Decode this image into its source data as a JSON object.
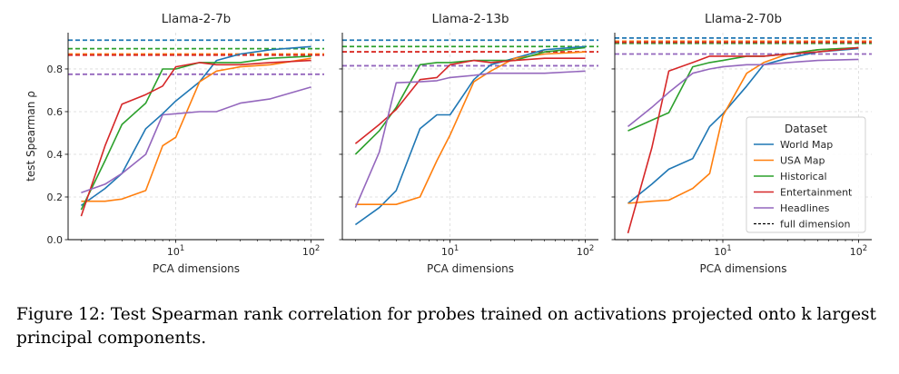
{
  "chart_data": [
    {
      "type": "line",
      "title": "Llama-2-7b",
      "xlabel": "PCA dimensions",
      "ylabel": "test Spearman ρ",
      "xscale": "log",
      "xlim": [
        1.6,
        125
      ],
      "ylim": [
        0.0,
        0.97
      ],
      "yticks": [
        "0.0",
        "0.2",
        "0.4",
        "0.6",
        "0.8"
      ],
      "xticks": [
        "10^1",
        "10^2"
      ],
      "grid": true,
      "x": [
        2,
        3,
        4,
        6,
        8,
        10,
        15,
        20,
        30,
        50,
        100
      ],
      "series": [
        {
          "name": "World Map",
          "color": "#1f77b4",
          "values": [
            0.16,
            0.24,
            0.31,
            0.52,
            0.59,
            0.65,
            0.74,
            0.84,
            0.87,
            0.89,
            0.905
          ],
          "full": 0.935
        },
        {
          "name": "USA Map",
          "color": "#ff7f0e",
          "values": [
            0.18,
            0.18,
            0.19,
            0.23,
            0.44,
            0.48,
            0.74,
            0.79,
            0.81,
            0.82,
            0.85
          ],
          "full": 0.87
        },
        {
          "name": "Historical",
          "color": "#2ca02c",
          "values": [
            0.14,
            0.37,
            0.54,
            0.64,
            0.8,
            0.8,
            0.83,
            0.83,
            0.83,
            0.85,
            0.86
          ],
          "full": 0.895
        },
        {
          "name": "Entertainment",
          "color": "#d62728",
          "values": [
            0.11,
            0.44,
            0.635,
            0.68,
            0.72,
            0.81,
            0.83,
            0.82,
            0.82,
            0.83,
            0.84
          ],
          "full": 0.865
        },
        {
          "name": "Headlines",
          "color": "#9467bd",
          "values": [
            0.22,
            0.26,
            0.31,
            0.4,
            0.585,
            0.59,
            0.6,
            0.6,
            0.64,
            0.66,
            0.715
          ],
          "full": 0.775
        }
      ]
    },
    {
      "type": "line",
      "title": "Llama-2-13b",
      "xlabel": "PCA dimensions",
      "ylabel": "",
      "xscale": "log",
      "xlim": [
        1.6,
        125
      ],
      "ylim": [
        0.0,
        0.97
      ],
      "xticks": [
        "10^1",
        "10^2"
      ],
      "grid": true,
      "x": [
        2,
        3,
        4,
        6,
        8,
        10,
        15,
        20,
        30,
        50,
        100
      ],
      "series": [
        {
          "name": "World Map",
          "color": "#1f77b4",
          "values": [
            0.07,
            0.15,
            0.23,
            0.52,
            0.585,
            0.585,
            0.75,
            0.82,
            0.85,
            0.89,
            0.905
          ],
          "full": 0.935
        },
        {
          "name": "USA Map",
          "color": "#ff7f0e",
          "values": [
            0.165,
            0.165,
            0.165,
            0.2,
            0.37,
            0.49,
            0.74,
            0.79,
            0.85,
            0.87,
            0.88
          ],
          "full": 0.88
        },
        {
          "name": "Historical",
          "color": "#2ca02c",
          "values": [
            0.4,
            0.51,
            0.62,
            0.82,
            0.83,
            0.83,
            0.84,
            0.84,
            0.84,
            0.88,
            0.9
          ],
          "full": 0.905
        },
        {
          "name": "Entertainment",
          "color": "#d62728",
          "values": [
            0.45,
            0.54,
            0.61,
            0.75,
            0.76,
            0.82,
            0.84,
            0.83,
            0.84,
            0.85,
            0.85
          ],
          "full": 0.88
        },
        {
          "name": "Headlines",
          "color": "#9467bd",
          "values": [
            0.15,
            0.41,
            0.735,
            0.74,
            0.745,
            0.76,
            0.77,
            0.78,
            0.78,
            0.78,
            0.79
          ],
          "full": 0.815
        }
      ]
    },
    {
      "type": "line",
      "title": "Llama-2-70b",
      "xlabel": "PCA dimensions",
      "ylabel": "",
      "xscale": "log",
      "xlim": [
        1.6,
        125
      ],
      "ylim": [
        0.0,
        0.97
      ],
      "xticks": [
        "10^1",
        "10^2"
      ],
      "grid": true,
      "x": [
        2,
        3,
        4,
        6,
        8,
        10,
        15,
        20,
        30,
        50,
        100
      ],
      "series": [
        {
          "name": "World Map",
          "color": "#1f77b4",
          "values": [
            0.17,
            0.26,
            0.33,
            0.38,
            0.53,
            0.59,
            0.72,
            0.82,
            0.85,
            0.88,
            0.895
          ],
          "full": 0.945
        },
        {
          "name": "USA Map",
          "color": "#ff7f0e",
          "values": [
            0.17,
            0.18,
            0.185,
            0.24,
            0.31,
            0.58,
            0.78,
            0.83,
            0.87,
            0.89,
            0.9
          ],
          "full": 0.93
        },
        {
          "name": "Historical",
          "color": "#2ca02c",
          "values": [
            0.51,
            0.56,
            0.595,
            0.81,
            0.83,
            0.84,
            0.86,
            0.86,
            0.87,
            0.89,
            0.9
          ],
          "full": 0.92
        },
        {
          "name": "Entertainment",
          "color": "#d62728",
          "values": [
            0.03,
            0.43,
            0.79,
            0.83,
            0.86,
            0.86,
            0.86,
            0.86,
            0.87,
            0.88,
            0.9
          ],
          "full": 0.925
        },
        {
          "name": "Headlines",
          "color": "#9467bd",
          "values": [
            0.53,
            0.62,
            0.69,
            0.78,
            0.8,
            0.81,
            0.82,
            0.82,
            0.83,
            0.84,
            0.845
          ],
          "full": 0.87
        }
      ]
    }
  ],
  "legend": {
    "title": "Dataset",
    "placement": "lower-right of third panel",
    "items": [
      "World Map",
      "USA Map",
      "Historical",
      "Entertainment",
      "Headlines",
      "full dimension"
    ]
  },
  "caption": "Figure 12: Test Spearman rank correlation for probes trained on activations projected onto k largest principal components."
}
